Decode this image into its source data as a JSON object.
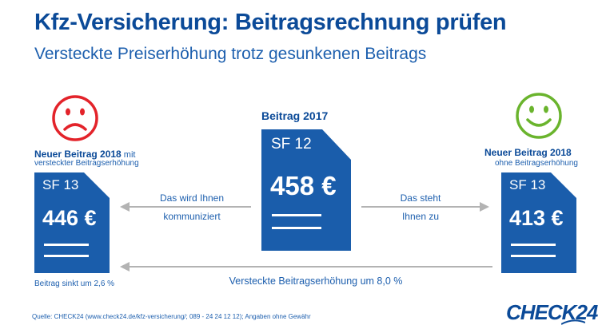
{
  "header": {
    "title": "Kfz-Versicherung: Beitragsrechnung prüfen",
    "subtitle": "Versteckte Preiserhöhung trotz gesunkenen Beitrags"
  },
  "left": {
    "label_bold": "Neuer Beitrag 2018",
    "label_suffix": " mit",
    "label_line2": "versteckter Beitragserhöhung",
    "sf": "SF 13",
    "price": "446 €",
    "note": "Beitrag sinkt um 2,6 %",
    "icon": "sad-face-icon",
    "icon_color": "#e3232a"
  },
  "center": {
    "label_bold": "Beitrag 2017",
    "sf": "SF 12",
    "price": "458 €"
  },
  "right": {
    "label_bold": "Neuer Beitrag 2018",
    "label_line2": "ohne Beitragserhöhung",
    "sf": "SF 13",
    "price": "413 €",
    "icon": "happy-face-icon",
    "icon_color": "#6ab42d"
  },
  "arrows": {
    "left_line1": "Das wird Ihnen",
    "left_line2": "kommuniziert",
    "right_line1": "Das steht",
    "right_line2": "Ihnen zu",
    "bottom": "Versteckte Beitragserhöhung um 8,0 %"
  },
  "footer": {
    "source": "Quelle: CHECK24 (www.check24.de/kfz-versicherung/; 089 - 24 24 12 12); Angaben ohne Gewähr",
    "logo": "CHECK24"
  },
  "colors": {
    "doc_blue": "#1a5dab",
    "text_blue": "#0b4a98",
    "arrow_gray": "#b3b3b3"
  }
}
